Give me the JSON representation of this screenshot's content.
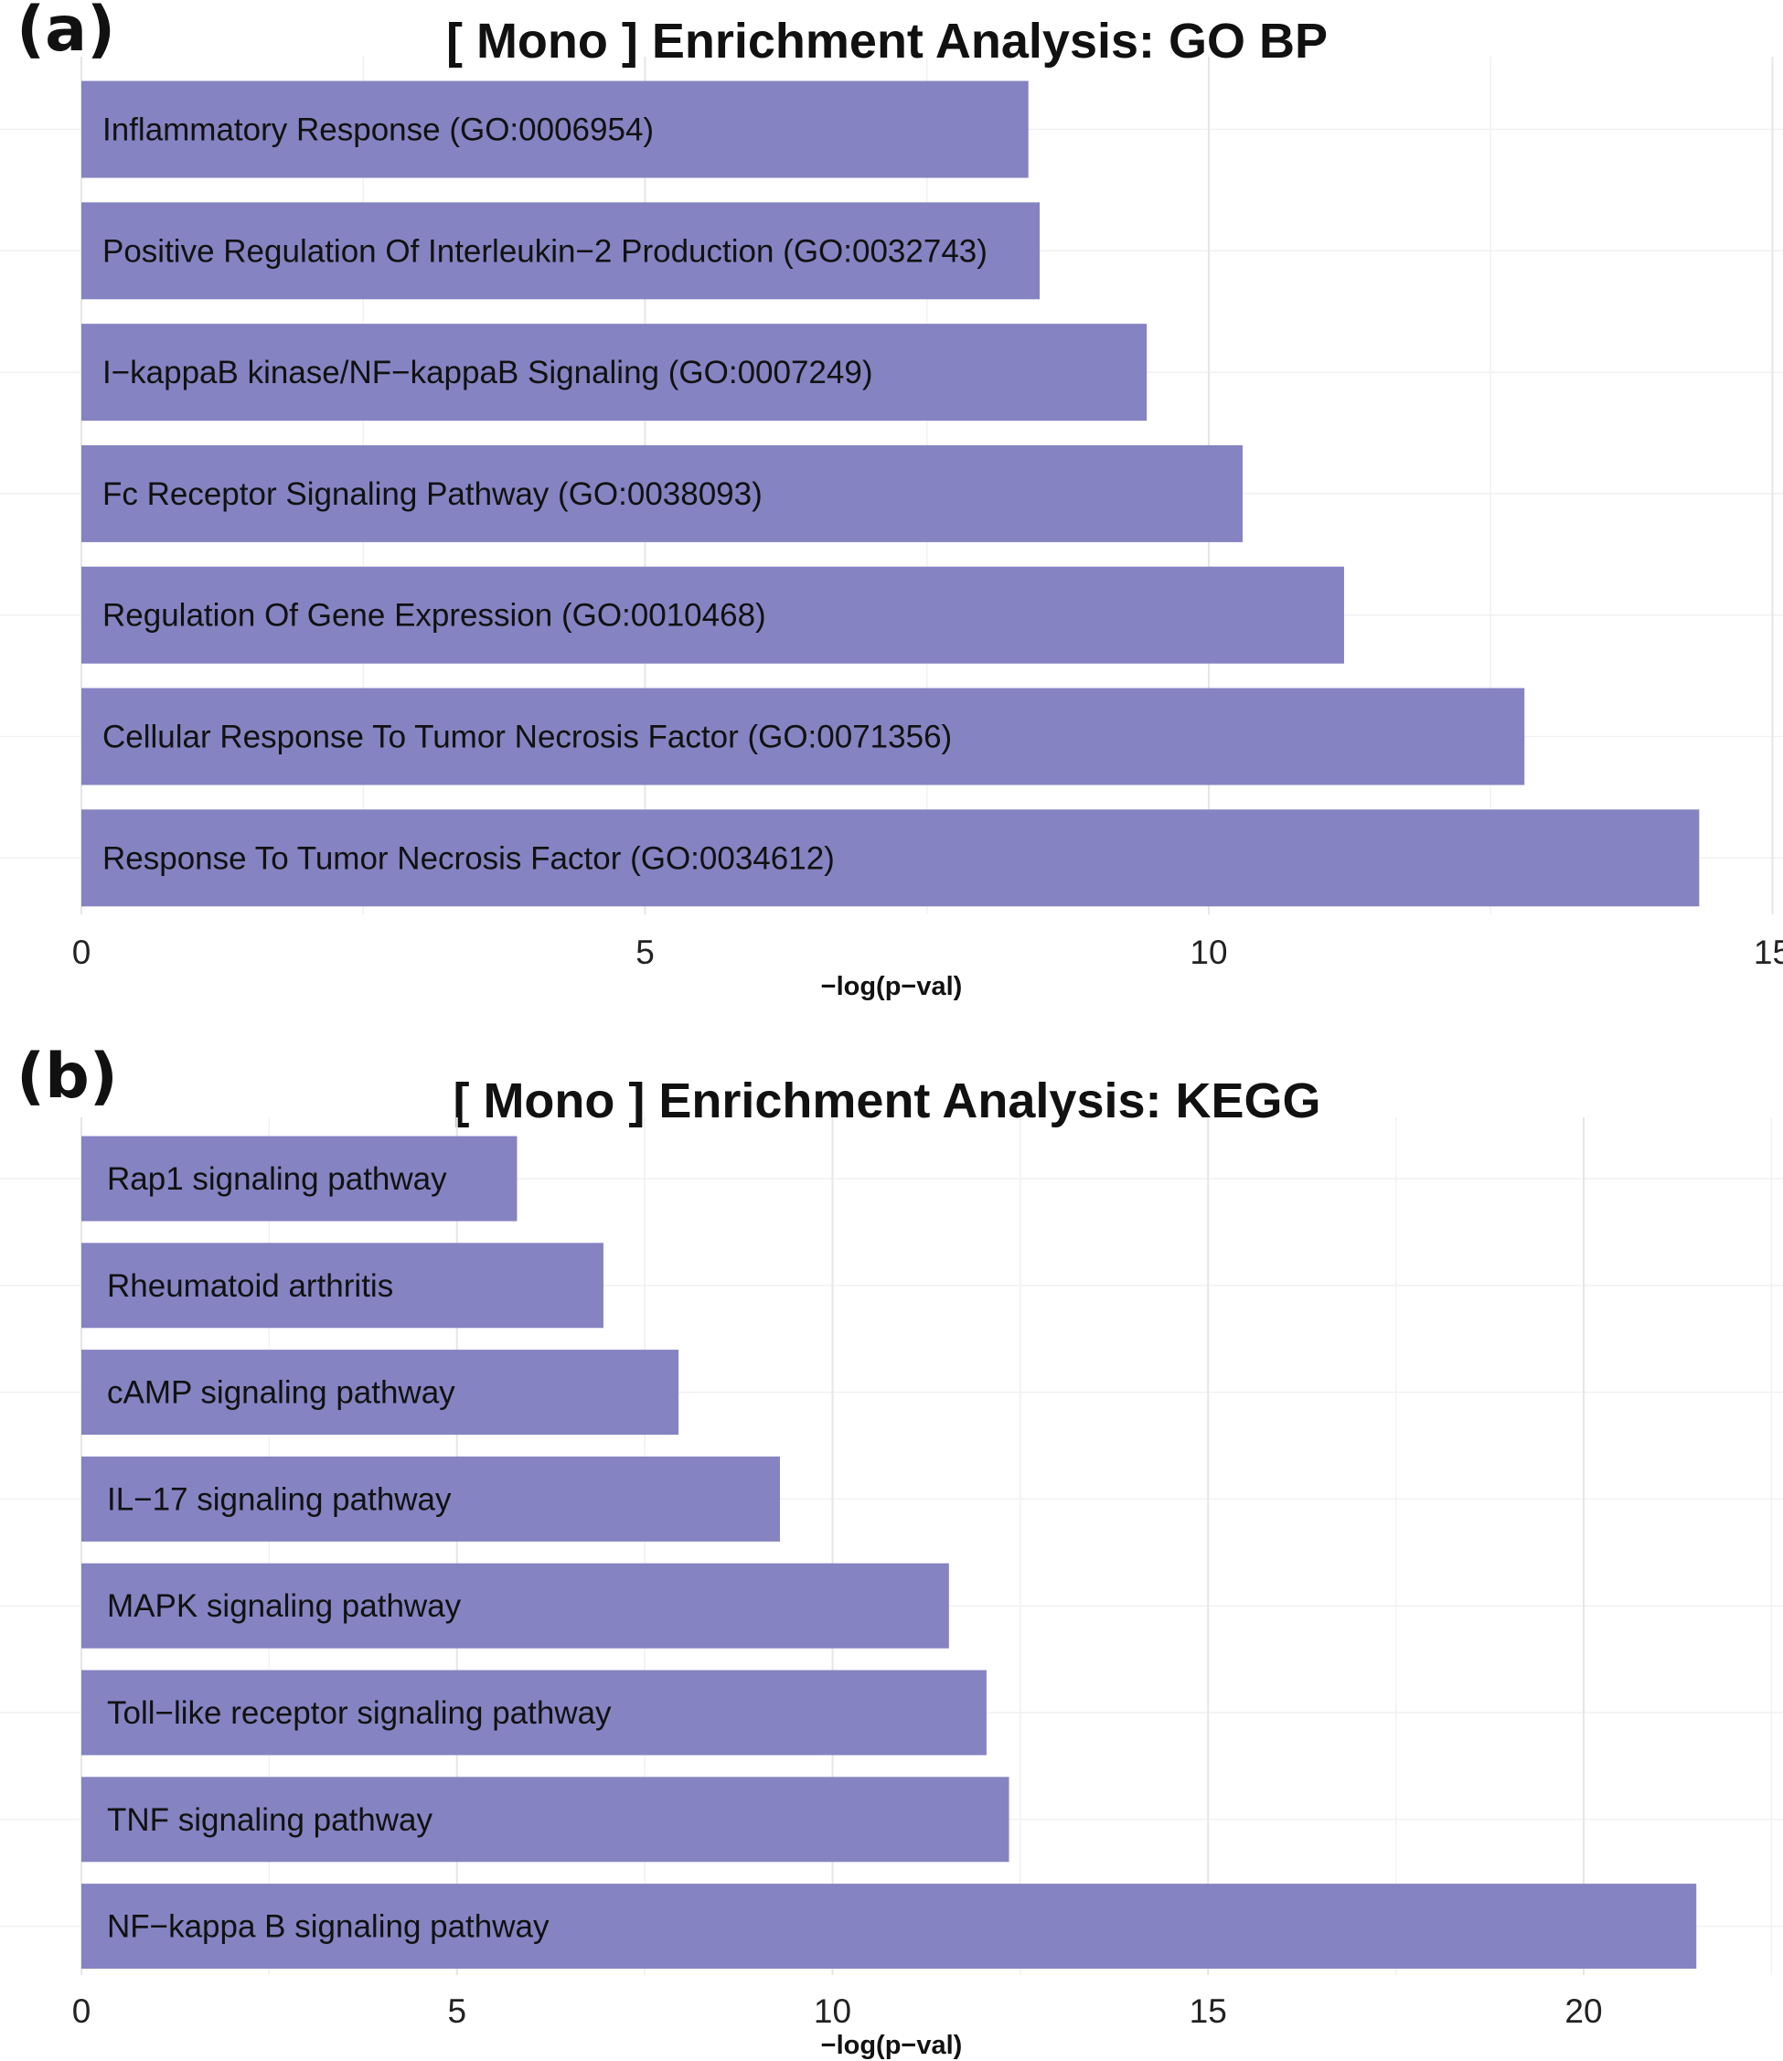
{
  "bar_color": "#8583c1",
  "chart_data": [
    {
      "panel": "(a)",
      "type": "bar",
      "orientation": "horizontal",
      "title": "[ Mono ] Enrichment Analysis: GO BP",
      "xlabel": "−log(p−val)",
      "ylabel": "",
      "xlim": [
        0,
        15
      ],
      "xticks": [
        0,
        5,
        10,
        15
      ],
      "grid": true,
      "categories": [
        "Inflammatory Response (GO:0006954)",
        "Positive Regulation Of Interleukin−2 Production (GO:0032743)",
        "I−kappaB kinase/NF−kappaB Signaling (GO:0007249)",
        "Fc Receptor Signaling Pathway (GO:0038093)",
        "Regulation Of Gene Expression (GO:0010468)",
        "Cellular Response To Tumor Necrosis Factor (GO:0071356)",
        "Response To Tumor Necrosis Factor (GO:0034612)"
      ],
      "values": [
        8.4,
        8.5,
        9.45,
        10.3,
        11.2,
        12.8,
        14.35
      ]
    },
    {
      "panel": "(b)",
      "type": "bar",
      "orientation": "horizontal",
      "title": "[ Mono ] Enrichment Analysis: KEGG",
      "xlabel": "−log(p−val)",
      "ylabel": "",
      "xlim": [
        0,
        22.5
      ],
      "xticks": [
        0,
        5,
        10,
        15,
        20
      ],
      "grid": true,
      "categories": [
        "Rap1 signaling pathway",
        "Rheumatoid arthritis",
        "cAMP signaling pathway",
        "IL−17 signaling pathway",
        "MAPK signaling pathway",
        "Toll−like receptor signaling pathway",
        "TNF signaling pathway",
        "NF−kappa B signaling pathway"
      ],
      "values": [
        5.8,
        6.95,
        7.95,
        9.3,
        11.55,
        12.05,
        12.35,
        21.5
      ]
    }
  ]
}
